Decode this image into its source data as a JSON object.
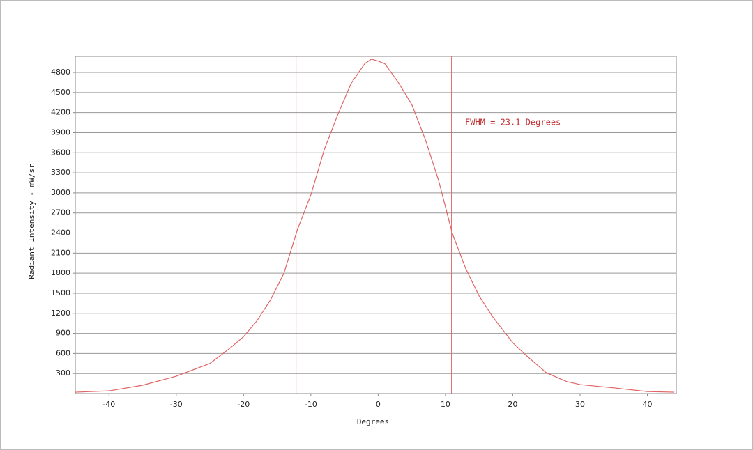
{
  "chart_data": {
    "type": "line",
    "x_label": "Degrees",
    "y_label": "Radiant Intensity - mW/sr",
    "annotation": "FWHM = 23.1 Degrees",
    "x": [
      -45,
      -40,
      -35,
      -30,
      -25,
      -22,
      -20,
      -18,
      -16,
      -14,
      -12,
      -10,
      -8,
      -6,
      -4,
      -2,
      -1,
      0,
      1,
      3,
      5,
      7,
      9,
      11,
      13,
      15,
      17,
      20,
      22,
      25,
      28,
      30,
      35,
      40,
      44
    ],
    "series": [
      {
        "color": "#e06464",
        "values": [
          20,
          40,
          125,
          260,
          450,
          680,
          850,
          1090,
          1400,
          1800,
          2450,
          2970,
          3650,
          4170,
          4640,
          4930,
          5000,
          4970,
          4930,
          4650,
          4320,
          3800,
          3180,
          2400,
          1870,
          1460,
          1150,
          760,
          570,
          310,
          180,
          135,
          85,
          30,
          20
        ]
      }
    ],
    "vlines": [
      -12.2,
      10.9
    ],
    "vline_color": "#e06464",
    "annotation_color": "#c03030",
    "xlim": [
      -45,
      44.3
    ],
    "ylim": [
      0,
      5040
    ],
    "xticks": [
      -40,
      -30,
      -20,
      -10,
      0,
      10,
      20,
      30,
      40
    ],
    "yticks": [
      300,
      600,
      900,
      1200,
      1500,
      1800,
      2100,
      2400,
      2700,
      3000,
      3300,
      3600,
      3900,
      4200,
      4500,
      4800
    ],
    "grid": true
  }
}
